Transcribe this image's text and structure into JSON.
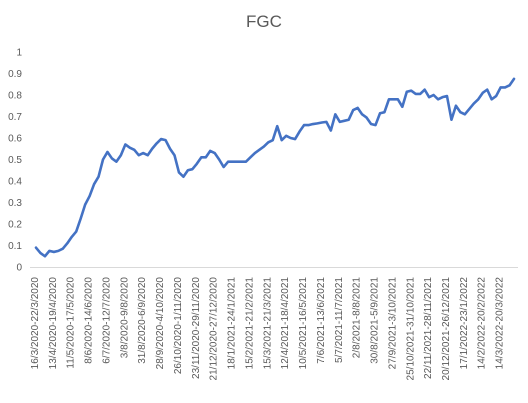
{
  "chart_data": {
    "type": "line",
    "title": "FGC",
    "xlabel": "",
    "ylabel": "",
    "ylim": [
      0,
      1
    ],
    "yticks": [
      "0",
      "0.1",
      "0.2",
      "0.3",
      "0.4",
      "0.5",
      "0.6",
      "0.7",
      "0.8",
      "0.9",
      "1"
    ],
    "grid": false,
    "legend": "none",
    "line_color": "#4472C4",
    "x_tick_labels": [
      "16/3/2020-22/3/2020",
      "13/4/2020-19/4/2020",
      "11/5/2020-17/5/2020",
      "8/6/2020-14/6/2020",
      "6/7/2020-12/7/2020",
      "3/8/2020-9/8/2020",
      "31/8/2020-6/9/2020",
      "28/9/2020-4/10/2020",
      "26/10/2020-1/11/2020",
      "23/11/2020-29/11/2020",
      "21/12/2020-27/12/2020",
      "18/1/2021-24/1/2021",
      "15/2/2021-21/2/2021",
      "15/3/2021-21/3/2021",
      "12/4/2021-18/4/2021",
      "10/5/2021-16/5/2021",
      "7/6/2021-13/6/2021",
      "5/7/2021-11/7/2021",
      "2/8/2021-8/8/2021",
      "30/8/2021-5/9/2021",
      "27/9/2021-3/10/2021",
      "25/10/2021-31/10/2021",
      "22/11/2021-28/11/2021",
      "20/12/2021-26/12/2021",
      "17/1/2022-23/1/2022",
      "14/2/2022-20/2/2022",
      "14/3/2022-20/3/2022"
    ],
    "series": [
      {
        "values": [
          0.09,
          0.065,
          0.05,
          0.075,
          0.07,
          0.075,
          0.085,
          0.11,
          0.14,
          0.165,
          0.225,
          0.29,
          0.33,
          0.385,
          0.42,
          0.5,
          0.535,
          0.505,
          0.49,
          0.52,
          0.57,
          0.555,
          0.545,
          0.52,
          0.53,
          0.52,
          0.55,
          0.575,
          0.595,
          0.59,
          0.55,
          0.52,
          0.44,
          0.42,
          0.45,
          0.455,
          0.48,
          0.51,
          0.51,
          0.54,
          0.53,
          0.5,
          0.465,
          0.49,
          0.49,
          0.49,
          0.49,
          0.49,
          0.51,
          0.53,
          0.545,
          0.56,
          0.58,
          0.59,
          0.655,
          0.59,
          0.61,
          0.6,
          0.595,
          0.63,
          0.66,
          0.66,
          0.665,
          0.668,
          0.672,
          0.675,
          0.635,
          0.71,
          0.675,
          0.68,
          0.685,
          0.73,
          0.74,
          0.71,
          0.695,
          0.665,
          0.66,
          0.715,
          0.72,
          0.78,
          0.78,
          0.78,
          0.745,
          0.815,
          0.82,
          0.805,
          0.805,
          0.825,
          0.79,
          0.8,
          0.78,
          0.79,
          0.795,
          0.685,
          0.75,
          0.72,
          0.71,
          0.735,
          0.76,
          0.78,
          0.81,
          0.825,
          0.78,
          0.795,
          0.835,
          0.835,
          0.845,
          0.875
        ]
      }
    ]
  }
}
